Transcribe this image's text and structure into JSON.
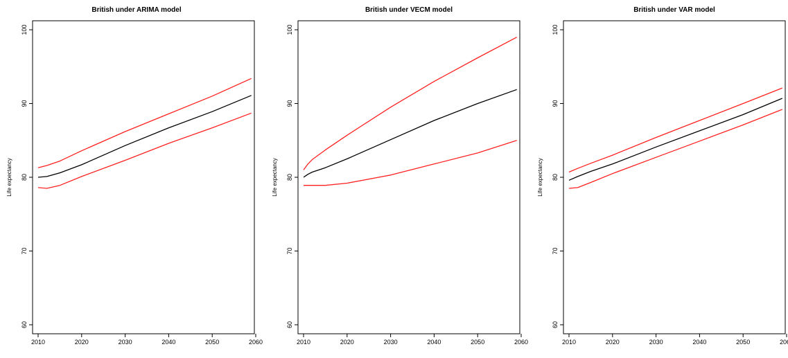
{
  "chart_data": [
    {
      "type": "line",
      "title": "British under ARIMA model",
      "xlabel": "",
      "ylabel": "Life expectancy",
      "xlim": [
        2010,
        2060
      ],
      "ylim": [
        60,
        100
      ],
      "xticks": [
        2010,
        2020,
        2030,
        2040,
        2050,
        2060
      ],
      "yticks": [
        60,
        70,
        80,
        90,
        100
      ],
      "grid": false,
      "x": [
        2010,
        2012,
        2015,
        2020,
        2030,
        2040,
        2050,
        2059
      ],
      "series": [
        {
          "color": "#ff2020",
          "values": [
            81.3,
            81.6,
            82.2,
            83.6,
            86.2,
            88.6,
            91.0,
            93.4
          ]
        },
        {
          "color": "#000000",
          "values": [
            80.0,
            80.1,
            80.6,
            81.7,
            84.3,
            86.7,
            88.9,
            91.1
          ]
        },
        {
          "color": "#ff2020",
          "values": [
            78.6,
            78.5,
            78.9,
            80.1,
            82.3,
            84.6,
            86.7,
            88.7
          ]
        }
      ]
    },
    {
      "type": "line",
      "title": "British under VECM model",
      "xlabel": "",
      "ylabel": "Life expectancy",
      "xlim": [
        2010,
        2060
      ],
      "ylim": [
        60,
        100
      ],
      "xticks": [
        2010,
        2020,
        2030,
        2040,
        2050,
        2060
      ],
      "yticks": [
        60,
        70,
        80,
        90,
        100
      ],
      "grid": false,
      "x": [
        2010,
        2011,
        2012,
        2015,
        2020,
        2030,
        2040,
        2050,
        2059
      ],
      "series": [
        {
          "color": "#ff2020",
          "values": [
            81.0,
            81.8,
            82.4,
            83.7,
            85.7,
            89.5,
            93.0,
            96.2,
            99.0
          ]
        },
        {
          "color": "#000000",
          "values": [
            80.0,
            80.4,
            80.7,
            81.3,
            82.5,
            85.1,
            87.7,
            90.0,
            91.9
          ]
        },
        {
          "color": "#ff2020",
          "values": [
            78.9,
            78.9,
            78.9,
            78.9,
            79.2,
            80.3,
            81.8,
            83.3,
            85.0
          ]
        }
      ]
    },
    {
      "type": "line",
      "title": "British under VAR model",
      "xlabel": "",
      "ylabel": "Life expectancy",
      "xlim": [
        2010,
        2060
      ],
      "ylim": [
        60,
        100
      ],
      "xticks": [
        2010,
        2020,
        2030,
        2040,
        2050,
        2060
      ],
      "yticks": [
        60,
        70,
        80,
        90,
        100
      ],
      "grid": false,
      "x": [
        2010,
        2012,
        2015,
        2020,
        2030,
        2040,
        2050,
        2059
      ],
      "series": [
        {
          "color": "#ff2020",
          "values": [
            80.7,
            81.2,
            81.9,
            83.0,
            85.4,
            87.7,
            90.0,
            92.1
          ]
        },
        {
          "color": "#000000",
          "values": [
            79.6,
            80.1,
            80.8,
            81.8,
            84.1,
            86.3,
            88.5,
            90.7
          ]
        },
        {
          "color": "#ff2020",
          "values": [
            78.5,
            78.6,
            79.3,
            80.5,
            82.7,
            84.9,
            87.1,
            89.2
          ]
        }
      ]
    }
  ]
}
